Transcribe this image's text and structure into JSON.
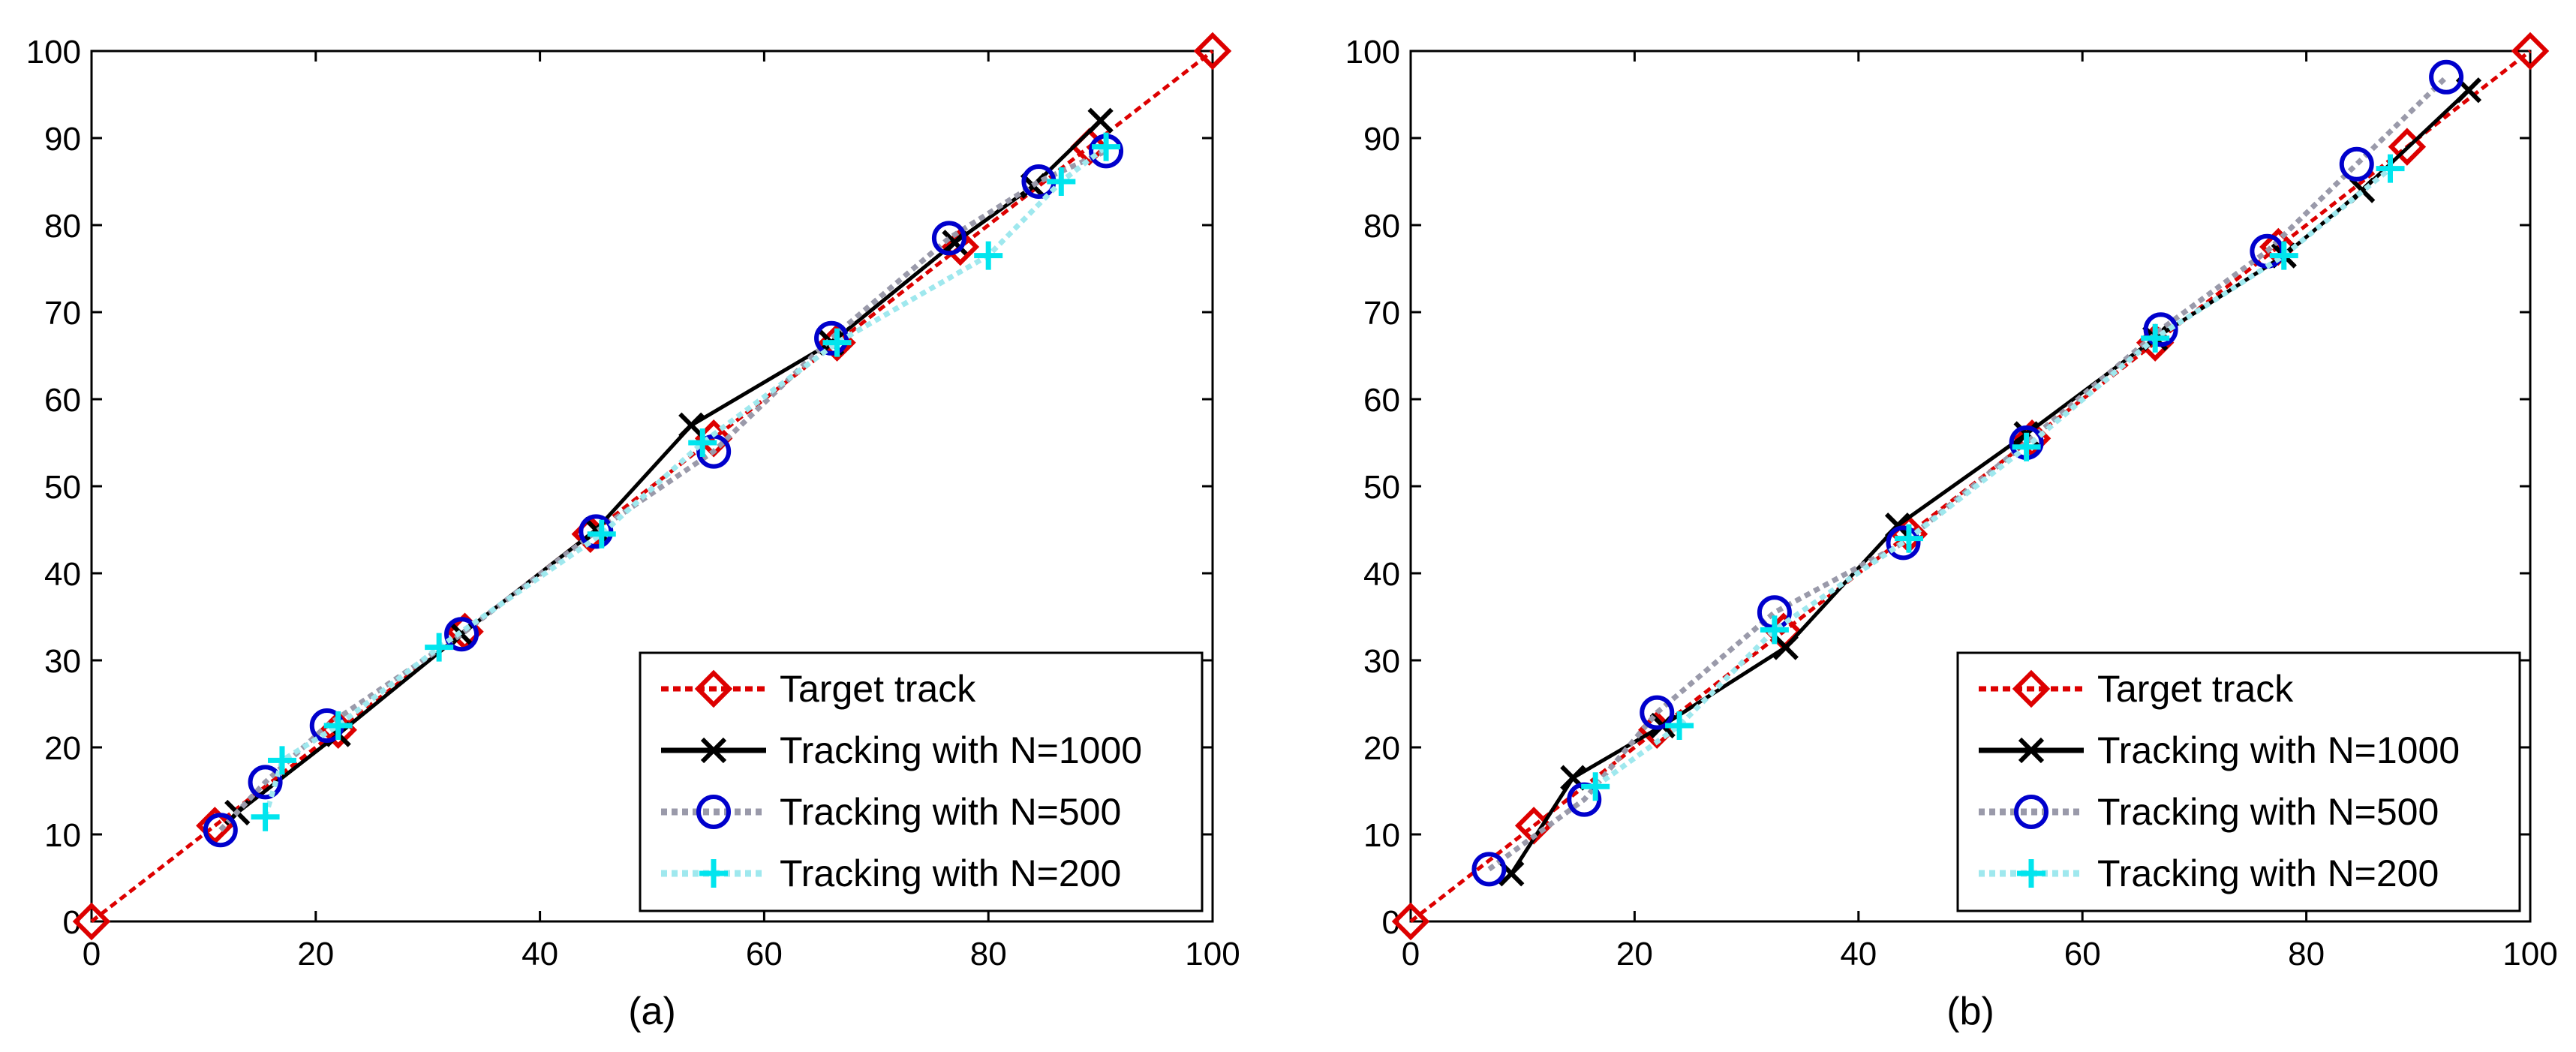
{
  "chart_data": [
    {
      "type": "line",
      "caption": "(a)",
      "xlim": [
        0,
        100
      ],
      "ylim": [
        0,
        100
      ],
      "xticks": [
        0,
        20,
        40,
        60,
        80,
        100
      ],
      "yticks": [
        0,
        10,
        20,
        30,
        40,
        50,
        60,
        70,
        80,
        90,
        100
      ],
      "grid": false,
      "legend_position": "bottom-right",
      "series": [
        {
          "name": "Target track",
          "color": "#dd0000",
          "marker": "diamond",
          "line": "dotted",
          "x": [
            0,
            11,
            22,
            33.3,
            44.5,
            55.5,
            66.5,
            77.5,
            89,
            100
          ],
          "y": [
            0,
            11,
            22,
            33.3,
            44.5,
            55.5,
            66.5,
            77.5,
            89,
            100
          ]
        },
        {
          "name": "Tracking with N=1000",
          "color": "#000000",
          "marker": "x",
          "line": "solid",
          "x": [
            13,
            22,
            33,
            45,
            53.5,
            66,
            77,
            84,
            90
          ],
          "y": [
            12.5,
            21.5,
            33,
            45,
            57,
            66.5,
            78,
            84.5,
            92
          ]
        },
        {
          "name": "Tracking with N=500",
          "color": "#0000cc",
          "marker": "circle",
          "line": "dotted-gray",
          "x": [
            11.5,
            15.5,
            21,
            33,
            45,
            55.5,
            66,
            76.5,
            84.5,
            90.5
          ],
          "y": [
            10.5,
            16,
            22.5,
            33,
            44.8,
            54,
            67,
            78.5,
            85,
            88.5
          ]
        },
        {
          "name": "Tracking with N=200",
          "color": "#00e5ee",
          "marker": "plus",
          "line": "dotted-cyan",
          "x": [
            15.5,
            17,
            22,
            31,
            45.5,
            54.5,
            66.5,
            80,
            86.5,
            90.5
          ],
          "y": [
            12,
            18.5,
            22.5,
            31.5,
            44.5,
            55,
            66.5,
            76.5,
            85,
            89
          ]
        }
      ]
    },
    {
      "type": "line",
      "caption": "(b)",
      "xlim": [
        0,
        100
      ],
      "ylim": [
        0,
        100
      ],
      "xticks": [
        0,
        20,
        40,
        60,
        80,
        100
      ],
      "yticks": [
        0,
        10,
        20,
        30,
        40,
        50,
        60,
        70,
        80,
        90,
        100
      ],
      "grid": false,
      "legend_position": "bottom-right",
      "series": [
        {
          "name": "Target track",
          "color": "#dd0000",
          "marker": "diamond",
          "line": "dotted",
          "x": [
            0,
            11,
            22,
            33.3,
            44.5,
            55.5,
            66.5,
            77.5,
            89,
            100
          ],
          "y": [
            0,
            11,
            22,
            33.3,
            44.5,
            55.5,
            66.5,
            77.5,
            89,
            100
          ]
        },
        {
          "name": "Tracking with N=1000",
          "color": "#000000",
          "marker": "x",
          "line": "solid",
          "x": [
            9,
            14.5,
            22.5,
            33.5,
            43.5,
            55,
            66.5,
            78,
            85,
            94.5
          ],
          "y": [
            5.5,
            16.5,
            22.5,
            31.5,
            45.5,
            56,
            67,
            76.5,
            84,
            95.5
          ]
        },
        {
          "name": "Tracking with N=500",
          "color": "#0000cc",
          "marker": "circle",
          "line": "dotted-gray",
          "x": [
            7,
            15.5,
            22,
            32.5,
            44,
            55,
            67,
            76.5,
            84.5,
            92.5
          ],
          "y": [
            6,
            14,
            24,
            35.5,
            43.5,
            55,
            68,
            77,
            87,
            97
          ]
        },
        {
          "name": "Tracking with N=200",
          "color": "#00e5ee",
          "marker": "plus",
          "line": "dotted-cyan",
          "x": [
            16.5,
            24,
            32.5,
            44.5,
            55,
            66.5,
            78,
            87.5
          ],
          "y": [
            15.5,
            22.5,
            33.5,
            44,
            54.5,
            67,
            76.5,
            86.5
          ]
        }
      ]
    }
  ]
}
